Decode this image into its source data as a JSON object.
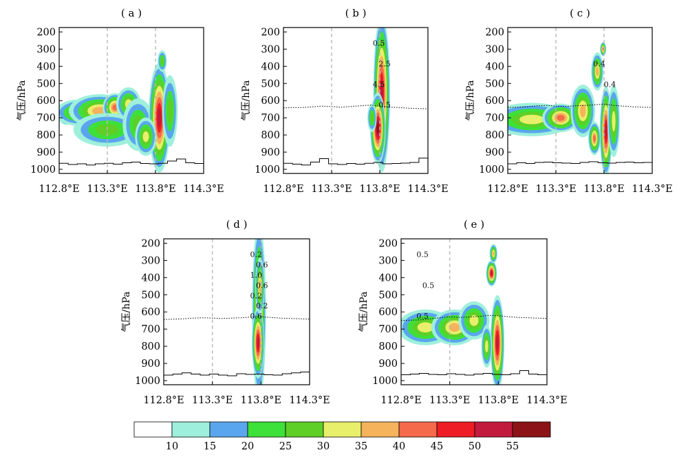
{
  "figure": {
    "ylabel": "气压/hPa",
    "y_ticks": [
      "200",
      "300",
      "400",
      "500",
      "600",
      "700",
      "800",
      "900",
      "1000"
    ],
    "x_ticks": [
      "112.8°E",
      "113.3°E",
      "113.8°E",
      "114.3°E"
    ]
  },
  "colorbar": {
    "labels": [
      "10",
      "15",
      "20",
      "25",
      "30",
      "35",
      "40",
      "45",
      "50",
      "55"
    ],
    "colors": [
      "#ffffff",
      "#9ef0dc",
      "#5aa6ee",
      "#3ee03a",
      "#5ecf26",
      "#e8ef6a",
      "#f5b35c",
      "#f46a4a",
      "#ee1c24",
      "#c21a3c",
      "#8c1418"
    ]
  },
  "chart_data": [
    {
      "type": "heatmap",
      "panel": "(a)",
      "x_axis": {
        "ticks": [
          112.8,
          113.3,
          113.8,
          114.3
        ],
        "range": [
          112.8,
          114.3
        ]
      },
      "y_axis": {
        "ticks": [
          200,
          300,
          400,
          500,
          600,
          700,
          800,
          900,
          1000
        ],
        "range": [
          1000,
          200
        ],
        "inverted": true
      },
      "dashed_verticals": [
        113.3,
        113.8
      ],
      "contour_labels": [],
      "reflectivity_blobs": [
        {
          "lon": 112.88,
          "p": 700,
          "dlon": 0.05,
          "dp": 30,
          "level": 6
        },
        {
          "lon": 113.0,
          "p": 670,
          "dlon": 0.15,
          "dp": 55,
          "level": 5
        },
        {
          "lon": 113.22,
          "p": 660,
          "dlon": 0.2,
          "dp": 70,
          "level": 6
        },
        {
          "lon": 113.38,
          "p": 640,
          "dlon": 0.08,
          "dp": 60,
          "level": 7
        },
        {
          "lon": 113.3,
          "p": 770,
          "dlon": 0.22,
          "dp": 70,
          "level": 4
        },
        {
          "lon": 113.52,
          "p": 620,
          "dlon": 0.08,
          "dp": 70,
          "level": 5
        },
        {
          "lon": 113.62,
          "p": 740,
          "dlon": 0.1,
          "dp": 110,
          "level": 4
        },
        {
          "lon": 113.84,
          "p": 700,
          "dlon": 0.07,
          "dp": 230,
          "level": 9
        },
        {
          "lon": 113.7,
          "p": 810,
          "dlon": 0.07,
          "dp": 80,
          "level": 5
        },
        {
          "lon": 113.95,
          "p": 660,
          "dlon": 0.05,
          "dp": 150,
          "level": 4
        },
        {
          "lon": 113.87,
          "p": 370,
          "dlon": 0.03,
          "dp": 45,
          "level": 4
        }
      ],
      "terrain": [
        965,
        972,
        968,
        975,
        968,
        965,
        970,
        962,
        958,
        966,
        968,
        965,
        952,
        940,
        962,
        966
      ],
      "freezing_level": null
    },
    {
      "type": "heatmap",
      "panel": "(b)",
      "x_axis": {
        "ticks": [
          112.8,
          113.3,
          113.8,
          114.3
        ],
        "range": [
          112.8,
          114.3
        ]
      },
      "y_axis": {
        "ticks": [
          200,
          300,
          400,
          500,
          600,
          700,
          800,
          900,
          1000
        ],
        "range": [
          1000,
          200
        ],
        "inverted": true
      },
      "dashed_verticals": [
        113.3,
        113.8
      ],
      "contour_labels": [
        "0.5",
        "2.5",
        "4.5",
        "0.5"
      ],
      "reflectivity_blobs": [
        {
          "lon": 113.82,
          "p": 560,
          "dlon": 0.055,
          "dp": 330,
          "level": 9
        },
        {
          "lon": 113.78,
          "p": 760,
          "dlon": 0.05,
          "dp": 150,
          "level": 10
        },
        {
          "lon": 113.72,
          "p": 700,
          "dlon": 0.03,
          "dp": 60,
          "level": 4
        }
      ],
      "terrain": [
        965,
        970,
        975,
        958,
        938,
        968,
        972,
        966,
        970,
        965,
        960,
        968,
        966,
        964,
        960,
        935
      ],
      "freezing_level": [
        642,
        640,
        640,
        636,
        632,
        635,
        638,
        634,
        630,
        626,
        632,
        638,
        640,
        644,
        646,
        648
      ]
    },
    {
      "type": "heatmap",
      "panel": "(c)",
      "x_axis": {
        "ticks": [
          112.8,
          113.3,
          113.8,
          114.3
        ],
        "range": [
          112.8,
          114.3
        ]
      },
      "y_axis": {
        "ticks": [
          200,
          300,
          400,
          500,
          600,
          700,
          800,
          900,
          1000
        ],
        "range": [
          1000,
          200
        ],
        "inverted": true
      },
      "dashed_verticals": [
        113.3,
        113.8
      ],
      "contour_labels": [
        "0.4",
        "0.4"
      ],
      "reflectivity_blobs": [
        {
          "lon": 113.05,
          "p": 710,
          "dlon": 0.28,
          "dp": 70,
          "level": 5
        },
        {
          "lon": 113.35,
          "p": 700,
          "dlon": 0.12,
          "dp": 60,
          "level": 7
        },
        {
          "lon": 113.58,
          "p": 660,
          "dlon": 0.08,
          "dp": 110,
          "level": 6
        },
        {
          "lon": 113.73,
          "p": 430,
          "dlon": 0.04,
          "dp": 80,
          "level": 6
        },
        {
          "lon": 113.79,
          "p": 300,
          "dlon": 0.02,
          "dp": 30,
          "level": 7
        },
        {
          "lon": 113.82,
          "p": 780,
          "dlon": 0.04,
          "dp": 190,
          "level": 9
        },
        {
          "lon": 113.7,
          "p": 820,
          "dlon": 0.04,
          "dp": 70,
          "level": 7
        },
        {
          "lon": 113.9,
          "p": 720,
          "dlon": 0.04,
          "dp": 150,
          "level": 5
        }
      ],
      "terrain": [
        968,
        962,
        966,
        960,
        958,
        962,
        964,
        966,
        960,
        956,
        962,
        964,
        960,
        958,
        962,
        960
      ],
      "freezing_level": [
        640,
        638,
        636,
        630,
        628,
        632,
        634,
        630,
        628,
        624,
        620,
        628,
        632,
        636,
        638,
        640
      ]
    },
    {
      "type": "heatmap",
      "panel": "(d)",
      "x_axis": {
        "ticks": [
          112.8,
          113.3,
          113.8,
          114.3
        ],
        "range": [
          112.8,
          114.3
        ]
      },
      "y_axis": {
        "ticks": [
          200,
          300,
          400,
          500,
          600,
          700,
          800,
          900,
          1000
        ],
        "range": [
          1000,
          200
        ],
        "inverted": true
      },
      "dashed_verticals": [
        113.3,
        113.8
      ],
      "contour_labels": [
        "0.2",
        "0.6",
        "1.0",
        "0.6",
        "0.2",
        "0.2",
        "0.6"
      ],
      "reflectivity_blobs": [
        {
          "lon": 113.78,
          "p": 600,
          "dlon": 0.045,
          "dp": 370,
          "level": 7
        },
        {
          "lon": 113.77,
          "p": 780,
          "dlon": 0.04,
          "dp": 150,
          "level": 9
        },
        {
          "lon": 113.79,
          "p": 450,
          "dlon": 0.03,
          "dp": 120,
          "level": 6
        }
      ],
      "terrain": [
        968,
        962,
        955,
        962,
        968,
        962,
        968,
        972,
        960,
        964,
        962,
        966,
        968,
        960,
        955,
        950
      ],
      "freezing_level": [
        644,
        642,
        640,
        636,
        634,
        636,
        638,
        636,
        634,
        630,
        628,
        632,
        636,
        638,
        640,
        642
      ]
    },
    {
      "type": "heatmap",
      "panel": "(e)",
      "x_axis": {
        "ticks": [
          112.8,
          113.3,
          113.8,
          114.3
        ],
        "range": [
          112.8,
          114.3
        ]
      },
      "y_axis": {
        "ticks": [
          200,
          300,
          400,
          500,
          600,
          700,
          800,
          900,
          1000
        ],
        "range": [
          1000,
          200
        ],
        "inverted": true
      },
      "dashed_verticals": [
        113.3
      ],
      "contour_labels": [
        "0.5",
        "0.5",
        "0.5"
      ],
      "reflectivity_blobs": [
        {
          "lon": 113.05,
          "p": 690,
          "dlon": 0.18,
          "dp": 75,
          "level": 5
        },
        {
          "lon": 113.35,
          "p": 690,
          "dlon": 0.15,
          "dp": 75,
          "level": 6
        },
        {
          "lon": 113.55,
          "p": 650,
          "dlon": 0.1,
          "dp": 80,
          "level": 5
        },
        {
          "lon": 113.73,
          "p": 375,
          "dlon": 0.035,
          "dp": 55,
          "level": 9
        },
        {
          "lon": 113.75,
          "p": 260,
          "dlon": 0.025,
          "dp": 40,
          "level": 6
        },
        {
          "lon": 113.79,
          "p": 780,
          "dlon": 0.045,
          "dp": 200,
          "level": 9
        },
        {
          "lon": 113.68,
          "p": 800,
          "dlon": 0.035,
          "dp": 90,
          "level": 5
        }
      ],
      "terrain": [
        966,
        962,
        958,
        964,
        966,
        960,
        964,
        968,
        962,
        958,
        964,
        966,
        960,
        942,
        962,
        966
      ],
      "freezing_level": [
        650,
        648,
        646,
        640,
        634,
        628,
        632,
        630,
        626,
        620,
        622,
        628,
        632,
        634,
        636,
        638
      ]
    }
  ]
}
